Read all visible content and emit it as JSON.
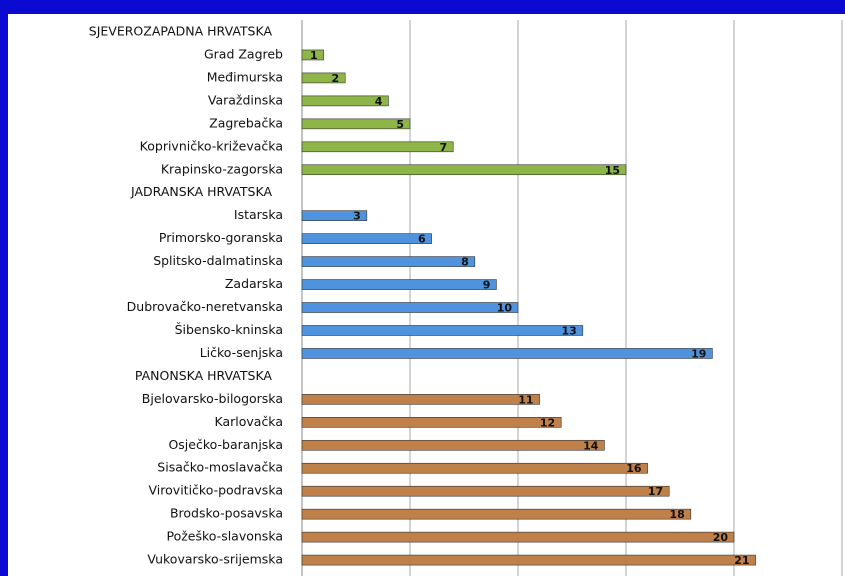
{
  "chart_data": {
    "type": "bar",
    "orientation": "horizontal",
    "categories": [
      null,
      "Grad Zagreb",
      "Međimurska",
      "Varaždinska",
      "Zagrebačka",
      "Koprivničko-križevačka",
      "Krapinsko-zagorska",
      null,
      "Istarska",
      "Primorsko-goranska",
      "Splitsko-dalmatinska",
      "Zadarska",
      "Dubrovačko-neretvanska",
      "Šibensko-kninska",
      "Ličko-senjska",
      null,
      "Bjelovarsko-bilogorska",
      "Karlovačka",
      "Osječko-baranjska",
      "Sisačko-moslavačka",
      "Virovitičko-podravska",
      "Brodsko-posavska",
      "Požeško-slavonska",
      "Vukovarsko-srijemska"
    ],
    "series": [
      {
        "name": "SJEVEROZAPADNA HRVATSKA",
        "color": "#8db548",
        "values": [
          null,
          1,
          2,
          4,
          5,
          7,
          15,
          null,
          null,
          null,
          null,
          null,
          null,
          null,
          null,
          null,
          null,
          null,
          null,
          null,
          null,
          null,
          null,
          null
        ]
      },
      {
        "name": "JADRANSKA HRVATSKA",
        "color": "#4f93de",
        "values": [
          null,
          null,
          null,
          null,
          null,
          null,
          null,
          null,
          3,
          6,
          8,
          9,
          10,
          13,
          19,
          null,
          null,
          null,
          null,
          null,
          null,
          null,
          null,
          null
        ]
      },
      {
        "name": "PANONSKA HRVATSKA",
        "color": "#c0804a",
        "values": [
          null,
          null,
          null,
          null,
          null,
          null,
          null,
          null,
          null,
          null,
          null,
          null,
          null,
          null,
          null,
          null,
          11,
          12,
          14,
          16,
          17,
          18,
          20,
          21
        ]
      }
    ],
    "xlim": [
      0,
      25
    ],
    "xticks": [
      0,
      5,
      10,
      15,
      20,
      25
    ],
    "grid": true
  }
}
